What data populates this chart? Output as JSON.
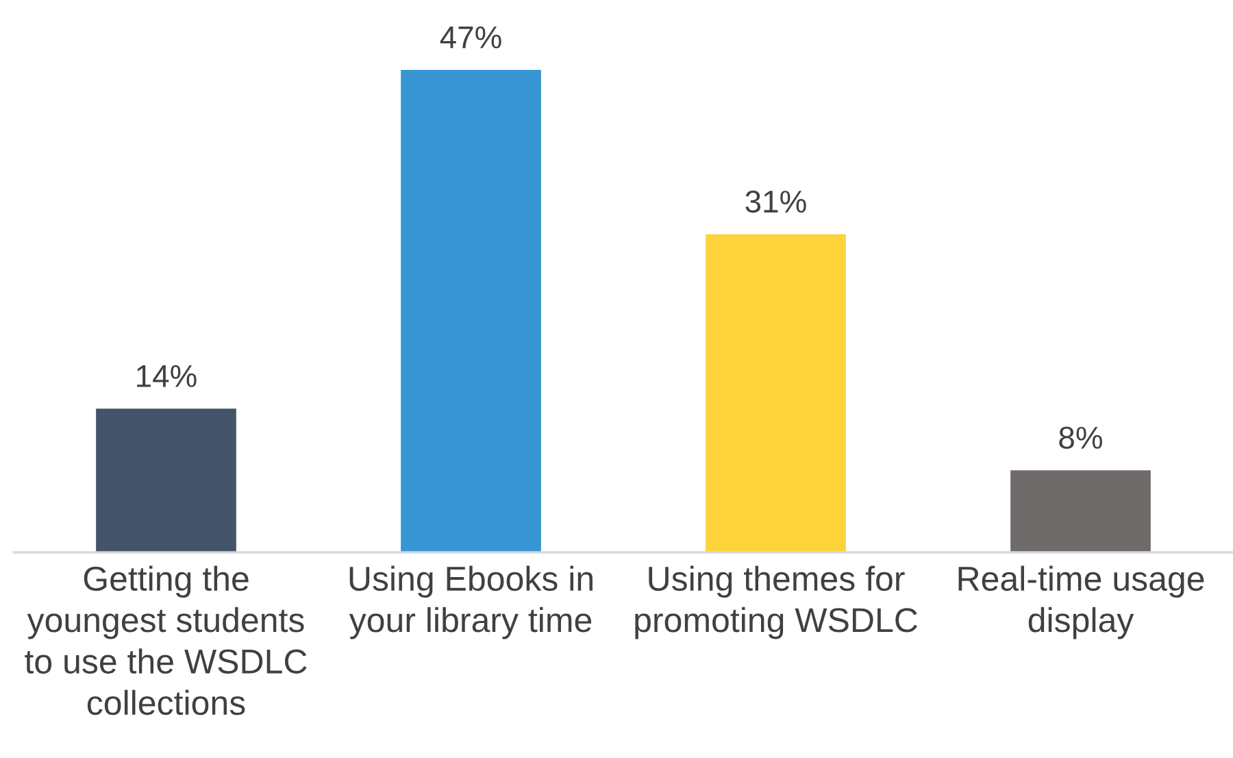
{
  "chart_data": {
    "type": "bar",
    "categories": [
      "Getting the\nyoungest students\nto use the WSDLC\ncollections",
      "Using Ebooks in\nyour library time",
      "Using themes for\npromoting WSDLC",
      "Real-time usage\ndisplay"
    ],
    "values": [
      14,
      47,
      31,
      8
    ],
    "colors": [
      "#44546a",
      "#3795d4",
      "#fdd33c",
      "#6f6b6a"
    ],
    "value_labels": [
      "14%",
      "47%",
      "31%",
      "8%"
    ],
    "grid": false,
    "legend": false
  }
}
